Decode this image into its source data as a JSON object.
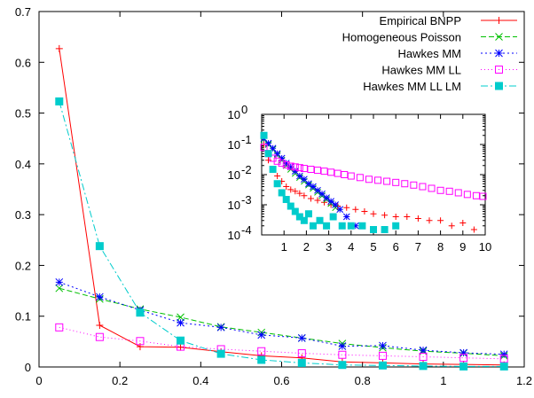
{
  "chart_data": {
    "type": "line",
    "title": "",
    "xlabel": "",
    "ylabel": "",
    "xlim": [
      0,
      1.2
    ],
    "ylim": [
      0,
      0.7
    ],
    "xticks": [
      "0",
      "0.2",
      "0.4",
      "0.6",
      "0.8",
      "1",
      "1.2"
    ],
    "yticks": [
      "0",
      "0.1",
      "0.2",
      "0.3",
      "0.4",
      "0.5",
      "0.6",
      "0.7"
    ],
    "legend_position": "top-right",
    "x": [
      0.05,
      0.15,
      0.25,
      0.35,
      0.45,
      0.55,
      0.65,
      0.75,
      0.85,
      0.95,
      1.05,
      1.15
    ],
    "series": [
      {
        "name": "Empirical BNPP",
        "color": "#ff0000",
        "marker": "plus",
        "dash": "",
        "values": [
          0.627,
          0.082,
          0.04,
          0.039,
          0.03,
          0.022,
          0.018,
          0.01,
          0.008,
          0.006,
          0.005,
          0.004
        ]
      },
      {
        "name": "Homogeneous Poisson",
        "color": "#00c000",
        "marker": "x",
        "dash": "6,3",
        "values": [
          0.155,
          0.134,
          0.114,
          0.098,
          0.079,
          0.068,
          0.057,
          0.046,
          0.038,
          0.031,
          0.027,
          0.022
        ]
      },
      {
        "name": "Hawkes MM",
        "color": "#0000ff",
        "marker": "star",
        "dash": "2,3",
        "values": [
          0.167,
          0.138,
          0.112,
          0.087,
          0.078,
          0.063,
          0.057,
          0.041,
          0.042,
          0.033,
          0.028,
          0.025
        ]
      },
      {
        "name": "Hawkes MM LL",
        "color": "#ff00ff",
        "marker": "square-open",
        "dash": "1,3",
        "values": [
          0.078,
          0.059,
          0.051,
          0.04,
          0.035,
          0.031,
          0.027,
          0.024,
          0.022,
          0.02,
          0.018,
          0.016
        ]
      },
      {
        "name": "Hawkes MM LL LM",
        "color": "#00cccc",
        "marker": "square-filled",
        "dash": "8,3,2,3",
        "values": [
          0.523,
          0.238,
          0.107,
          0.052,
          0.026,
          0.014,
          0.008,
          0.004,
          0.003,
          0.002,
          0.001,
          0.001
        ]
      }
    ],
    "inset": {
      "type": "scatter",
      "log_y": true,
      "xlim": [
        0,
        10
      ],
      "ylim": [
        0.0001,
        1
      ],
      "xticks": [
        "1",
        "2",
        "3",
        "4",
        "5",
        "6",
        "7",
        "8",
        "9",
        "10"
      ],
      "yticks": [
        {
          "base": "10",
          "exp": "0"
        },
        {
          "base": "10",
          "exp": "-1"
        },
        {
          "base": "10",
          "exp": "-2"
        },
        {
          "base": "10",
          "exp": "-3"
        },
        {
          "base": "10",
          "exp": "-4"
        }
      ],
      "series": [
        {
          "name": "Empirical BNPP",
          "color": "#ff0000",
          "marker": "plus",
          "x": [
            0.1,
            0.3,
            0.5,
            0.7,
            0.9,
            1.1,
            1.3,
            1.5,
            1.7,
            1.9,
            2.2,
            2.5,
            2.8,
            3.1,
            3.4,
            3.8,
            4.2,
            4.6,
            5.0,
            5.5,
            6.0,
            6.5,
            7.0,
            7.5,
            8.0,
            8.5,
            9.0,
            9.5
          ],
          "y": [
            0.1,
            0.03,
            0.015,
            0.009,
            0.006,
            0.004,
            0.0032,
            0.0028,
            0.0024,
            0.002,
            0.0016,
            0.0014,
            0.0012,
            0.001,
            0.0009,
            0.0008,
            0.0007,
            0.0006,
            0.0005,
            0.00045,
            0.0004,
            0.0004,
            0.00035,
            0.0003,
            0.0003,
            0.0002,
            0.00025,
            0.00015
          ]
        },
        {
          "name": "Homogeneous Poisson",
          "color": "#00c000",
          "marker": "x",
          "x": [
            0.1,
            0.3,
            0.5,
            0.7,
            0.9,
            1.1,
            1.3,
            1.5,
            1.7,
            1.9,
            2.1,
            2.3,
            2.5,
            2.7,
            2.9,
            3.1,
            3.3
          ],
          "y": [
            0.15,
            0.1,
            0.07,
            0.045,
            0.03,
            0.02,
            0.015,
            0.011,
            0.008,
            0.006,
            0.0045,
            0.0035,
            0.0026,
            0.002,
            0.0015,
            0.0011,
            0.0008
          ]
        },
        {
          "name": "Hawkes MM",
          "color": "#0000ff",
          "marker": "star",
          "x": [
            0.1,
            0.3,
            0.5,
            0.7,
            0.9,
            1.1,
            1.3,
            1.5,
            1.7,
            1.9,
            2.1,
            2.3,
            2.5,
            2.7,
            2.9,
            3.1,
            3.3,
            3.5,
            3.8,
            4.2
          ],
          "y": [
            0.16,
            0.11,
            0.075,
            0.05,
            0.035,
            0.024,
            0.018,
            0.013,
            0.009,
            0.007,
            0.005,
            0.004,
            0.003,
            0.0023,
            0.0017,
            0.0013,
            0.001,
            0.0007,
            0.0004,
            0.0002
          ]
        },
        {
          "name": "Hawkes MM LL",
          "color": "#ff00ff",
          "marker": "square-open",
          "x": [
            0.1,
            0.3,
            0.5,
            0.7,
            0.9,
            1.1,
            1.3,
            1.5,
            1.7,
            1.9,
            2.2,
            2.5,
            2.8,
            3.1,
            3.4,
            3.7,
            4.0,
            4.4,
            4.8,
            5.2,
            5.6,
            6.0,
            6.4,
            6.8,
            7.2,
            7.6,
            8.0,
            8.4,
            8.8,
            9.2,
            9.6,
            9.9
          ],
          "y": [
            0.08,
            0.05,
            0.035,
            0.028,
            0.024,
            0.021,
            0.019,
            0.018,
            0.017,
            0.016,
            0.015,
            0.014,
            0.013,
            0.012,
            0.011,
            0.01,
            0.009,
            0.008,
            0.007,
            0.0065,
            0.006,
            0.0055,
            0.005,
            0.0045,
            0.004,
            0.0035,
            0.003,
            0.0028,
            0.0025,
            0.0022,
            0.002,
            0.0019
          ]
        },
        {
          "name": "Hawkes MM LL LM",
          "color": "#00cccc",
          "marker": "square-filled",
          "x": [
            0.1,
            0.3,
            0.5,
            0.7,
            0.9,
            1.1,
            1.3,
            1.5,
            1.7,
            1.9,
            2.1,
            2.3,
            2.6,
            2.9,
            3.2,
            3.6,
            4.0,
            4.5,
            5.0,
            5.5,
            6.0
          ],
          "y": [
            0.2,
            0.05,
            0.015,
            0.005,
            0.0025,
            0.0015,
            0.0009,
            0.0006,
            0.0004,
            0.0003,
            0.0005,
            0.0002,
            0.0003,
            0.0002,
            0.0004,
            0.0002,
            0.0002,
            0.0002,
            0.00015,
            0.00015,
            0.0002
          ]
        }
      ]
    }
  }
}
